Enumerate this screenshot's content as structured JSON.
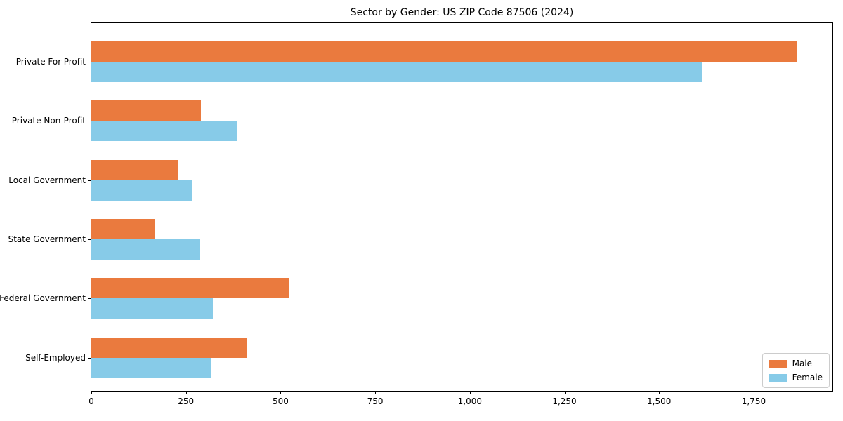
{
  "title": "Sector by Gender: US ZIP Code 87506 (2024)",
  "colors": {
    "male": "#EA7A3E",
    "female": "#87CBE8",
    "spine": "#000000",
    "legend_border": "#CCCCCC",
    "background": "#FFFFFF"
  },
  "chart_data": {
    "type": "bar",
    "orientation": "horizontal",
    "title": "Sector by Gender: US ZIP Code 87506 (2024)",
    "xlabel": "",
    "ylabel": "",
    "grid": false,
    "categories": [
      "Private For-Profit",
      "Private Non-Profit",
      "Local Government",
      "State Government",
      "Federal Government",
      "Self-Employed"
    ],
    "series": [
      {
        "name": "Male",
        "color": "#EA7A3E",
        "values": [
          1864,
          290,
          230,
          167,
          523,
          410
        ]
      },
      {
        "name": "Female",
        "color": "#87CBE8",
        "values": [
          1614,
          386,
          266,
          288,
          321,
          315
        ]
      }
    ],
    "xlim": [
      0,
      1958
    ],
    "xticks": [
      0,
      250,
      500,
      750,
      1000,
      1250,
      1500,
      1750
    ],
    "xtick_labels": [
      "0",
      "250",
      "500",
      "750",
      "1,000",
      "1,250",
      "1,500",
      "1,750"
    ],
    "legend": {
      "position": "lower right",
      "entries": [
        "Male",
        "Female"
      ]
    }
  }
}
